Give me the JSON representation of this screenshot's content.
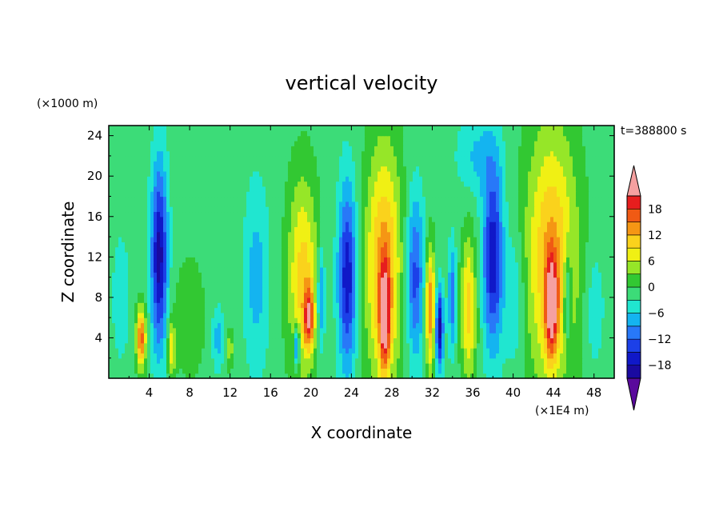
{
  "chart_data": {
    "type": "heatmap",
    "title": "vertical velocity",
    "xlabel": "X coordinate",
    "ylabel": "Z coordinate",
    "x_unit": "(×1E4 m)",
    "y_unit": "(×1000 m)",
    "time_label": "t=388800 s",
    "xlim": [
      0,
      50
    ],
    "ylim": [
      0,
      25
    ],
    "x_ticks": [
      "4",
      "8",
      "12",
      "16",
      "20",
      "24",
      "28",
      "32",
      "36",
      "40",
      "44",
      "48"
    ],
    "y_ticks": [
      "4",
      "8",
      "12",
      "16",
      "20",
      "24"
    ],
    "colorbar": {
      "labels": [
        "18",
        "12",
        "6",
        "0",
        "−6",
        "−12",
        "−18"
      ],
      "label_values": [
        18,
        12,
        6,
        0,
        -6,
        -12,
        -18
      ],
      "levels": [
        -21,
        -18,
        -15,
        -12,
        -9,
        -6,
        -3,
        0,
        3,
        6,
        9,
        12,
        15,
        18,
        21
      ],
      "colors": [
        "#5a0a9c",
        "#1a0aa0",
        "#1018c8",
        "#1c40e8",
        "#2878f8",
        "#14b4f0",
        "#20e6d0",
        "#3cdc78",
        "#32c832",
        "#96e628",
        "#f0f014",
        "#fad21c",
        "#f59614",
        "#f05a14",
        "#e61e1e",
        "#f5a0a0"
      ],
      "extend": "both"
    },
    "features": [
      {
        "x": 3.2,
        "z": 4,
        "sx": 0.5,
        "sz": 3,
        "v": 18
      },
      {
        "x": 5.0,
        "z": 12,
        "sx": 0.8,
        "sz": 9,
        "v": -18
      },
      {
        "x": 6.2,
        "z": 3,
        "sx": 0.4,
        "sz": 3,
        "v": 9
      },
      {
        "x": 8.0,
        "z": 6,
        "sx": 1.6,
        "sz": 6,
        "v": 4
      },
      {
        "x": 10.8,
        "z": 4,
        "sx": 0.6,
        "sz": 3,
        "v": -6
      },
      {
        "x": 12.0,
        "z": 3,
        "sx": 0.3,
        "sz": 2,
        "v": 7
      },
      {
        "x": 14.6,
        "z": 10,
        "sx": 1.2,
        "sz": 9,
        "v": -6
      },
      {
        "x": 19.2,
        "z": 10,
        "sx": 1.5,
        "sz": 10,
        "v": 12
      },
      {
        "x": 19.8,
        "z": 6,
        "sx": 0.5,
        "sz": 3,
        "v": 16
      },
      {
        "x": 18.6,
        "z": 3,
        "sx": 0.3,
        "sz": 2,
        "v": -14
      },
      {
        "x": 21.0,
        "z": 8,
        "sx": 0.4,
        "sz": 5,
        "v": -10
      },
      {
        "x": 23.6,
        "z": 10,
        "sx": 0.9,
        "sz": 9,
        "v": -16
      },
      {
        "x": 27.2,
        "z": 11,
        "sx": 1.8,
        "sz": 12,
        "v": 15
      },
      {
        "x": 27.3,
        "z": 6,
        "sx": 0.5,
        "sz": 5,
        "v": 19
      },
      {
        "x": 30.3,
        "z": 10,
        "sx": 0.9,
        "sz": 8,
        "v": -12
      },
      {
        "x": 31.8,
        "z": 7,
        "sx": 0.5,
        "sz": 6,
        "v": 17
      },
      {
        "x": 32.7,
        "z": 5,
        "sx": 0.4,
        "sz": 4,
        "v": -18
      },
      {
        "x": 34.0,
        "z": 8,
        "sx": 0.4,
        "sz": 5,
        "v": -10
      },
      {
        "x": 35.6,
        "z": 7,
        "sx": 0.8,
        "sz": 7,
        "v": 12
      },
      {
        "x": 38.0,
        "z": 12,
        "sx": 1.0,
        "sz": 9,
        "v": -16
      },
      {
        "x": 40.2,
        "z": 8,
        "sx": 1.0,
        "sz": 7,
        "v": -5
      },
      {
        "x": 43.8,
        "z": 12,
        "sx": 2.6,
        "sz": 13,
        "v": 14
      },
      {
        "x": 43.8,
        "z": 7,
        "sx": 0.6,
        "sz": 5,
        "v": 18
      },
      {
        "x": 45.4,
        "z": 8,
        "sx": 0.4,
        "sz": 5,
        "v": -10
      },
      {
        "x": 48.0,
        "z": 7,
        "sx": 1.0,
        "sz": 6,
        "v": -4
      },
      {
        "x": 1.2,
        "z": 8,
        "sx": 0.8,
        "sz": 6,
        "v": -4
      },
      {
        "x": 36.5,
        "z": 22,
        "sx": 2.0,
        "sz": 4,
        "v": -5
      }
    ]
  }
}
